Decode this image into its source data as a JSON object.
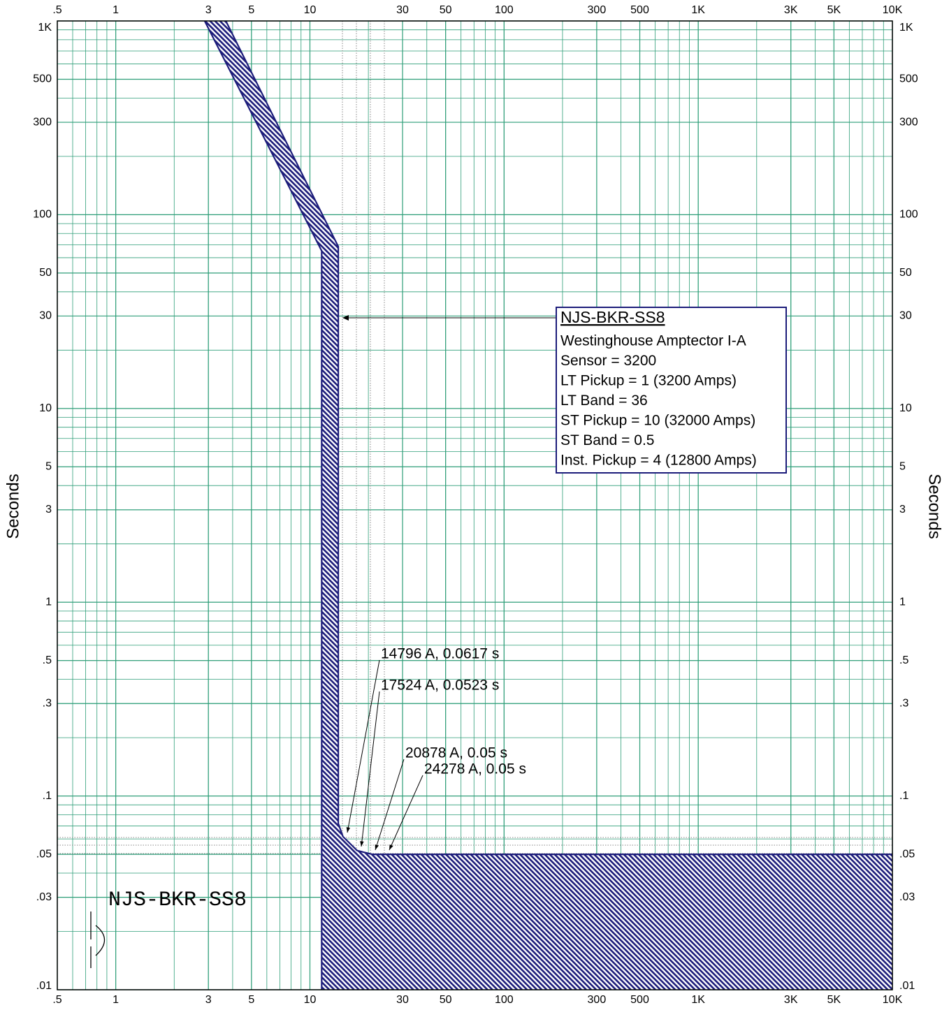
{
  "chart_data": {
    "type": "tcc",
    "y_label": "Seconds",
    "log_x": true,
    "log_y": true,
    "grid": true,
    "grid_color": "#2e9e78",
    "xlim": [
      0.5,
      10000
    ],
    "xticks": [
      {
        "value": 0.5,
        "label": ".5"
      },
      1,
      3,
      5,
      10,
      30,
      50,
      100,
      300,
      500,
      {
        "value": 1000,
        "label": "1K"
      },
      {
        "value": 3000,
        "label": "3K"
      },
      {
        "value": 5000,
        "label": "5K"
      },
      {
        "value": 10000,
        "label": "10K"
      }
    ],
    "ylim": [
      0.01,
      1000
    ],
    "yticks": [
      {
        "value": 0.01,
        "label": ".01"
      },
      {
        "value": 0.03,
        "label": ".03"
      },
      {
        "value": 0.05,
        "label": ".05"
      },
      {
        "value": 0.1,
        "label": ".1"
      },
      {
        "value": 0.3,
        "label": ".3"
      },
      {
        "value": 0.5,
        "label": ".5"
      },
      1,
      3,
      5,
      10,
      30,
      50,
      100,
      300,
      500,
      {
        "value": 1000,
        "label": "1K"
      }
    ],
    "band": {
      "color": "#1c1c7a",
      "left": {
        "x": [
          2.87,
          11.5,
          11.5
        ],
        "y": [
          1000,
          65,
          0.01
        ]
      },
      "right": {
        "x": [
          3.69,
          14,
          14,
          14.8,
          17.5,
          20.9,
          10000
        ],
        "y": [
          1000,
          68.5,
          0.072,
          0.0617,
          0.0523,
          0.05,
          0.05
        ]
      }
    },
    "label_box": {
      "title": "NJS-BKR-SS8",
      "lines": [
        "Westinghouse  Amptector I-A",
        "Sensor = 3200",
        "LT Pickup = 1 (3200 Amps)",
        "LT Band = 36",
        "ST Pickup = 10 (32000 Amps)",
        "ST Band = 0.5",
        "Inst. Pickup = 4 (12800 Amps)"
      ]
    },
    "annotations": [
      "14796 A, 0.0617 s",
      "17524 A, 0.0523 s",
      "20878 A, 0.05 s",
      "24278 A, 0.05 s"
    ],
    "device_label": "NJS-BKR-SS8"
  }
}
